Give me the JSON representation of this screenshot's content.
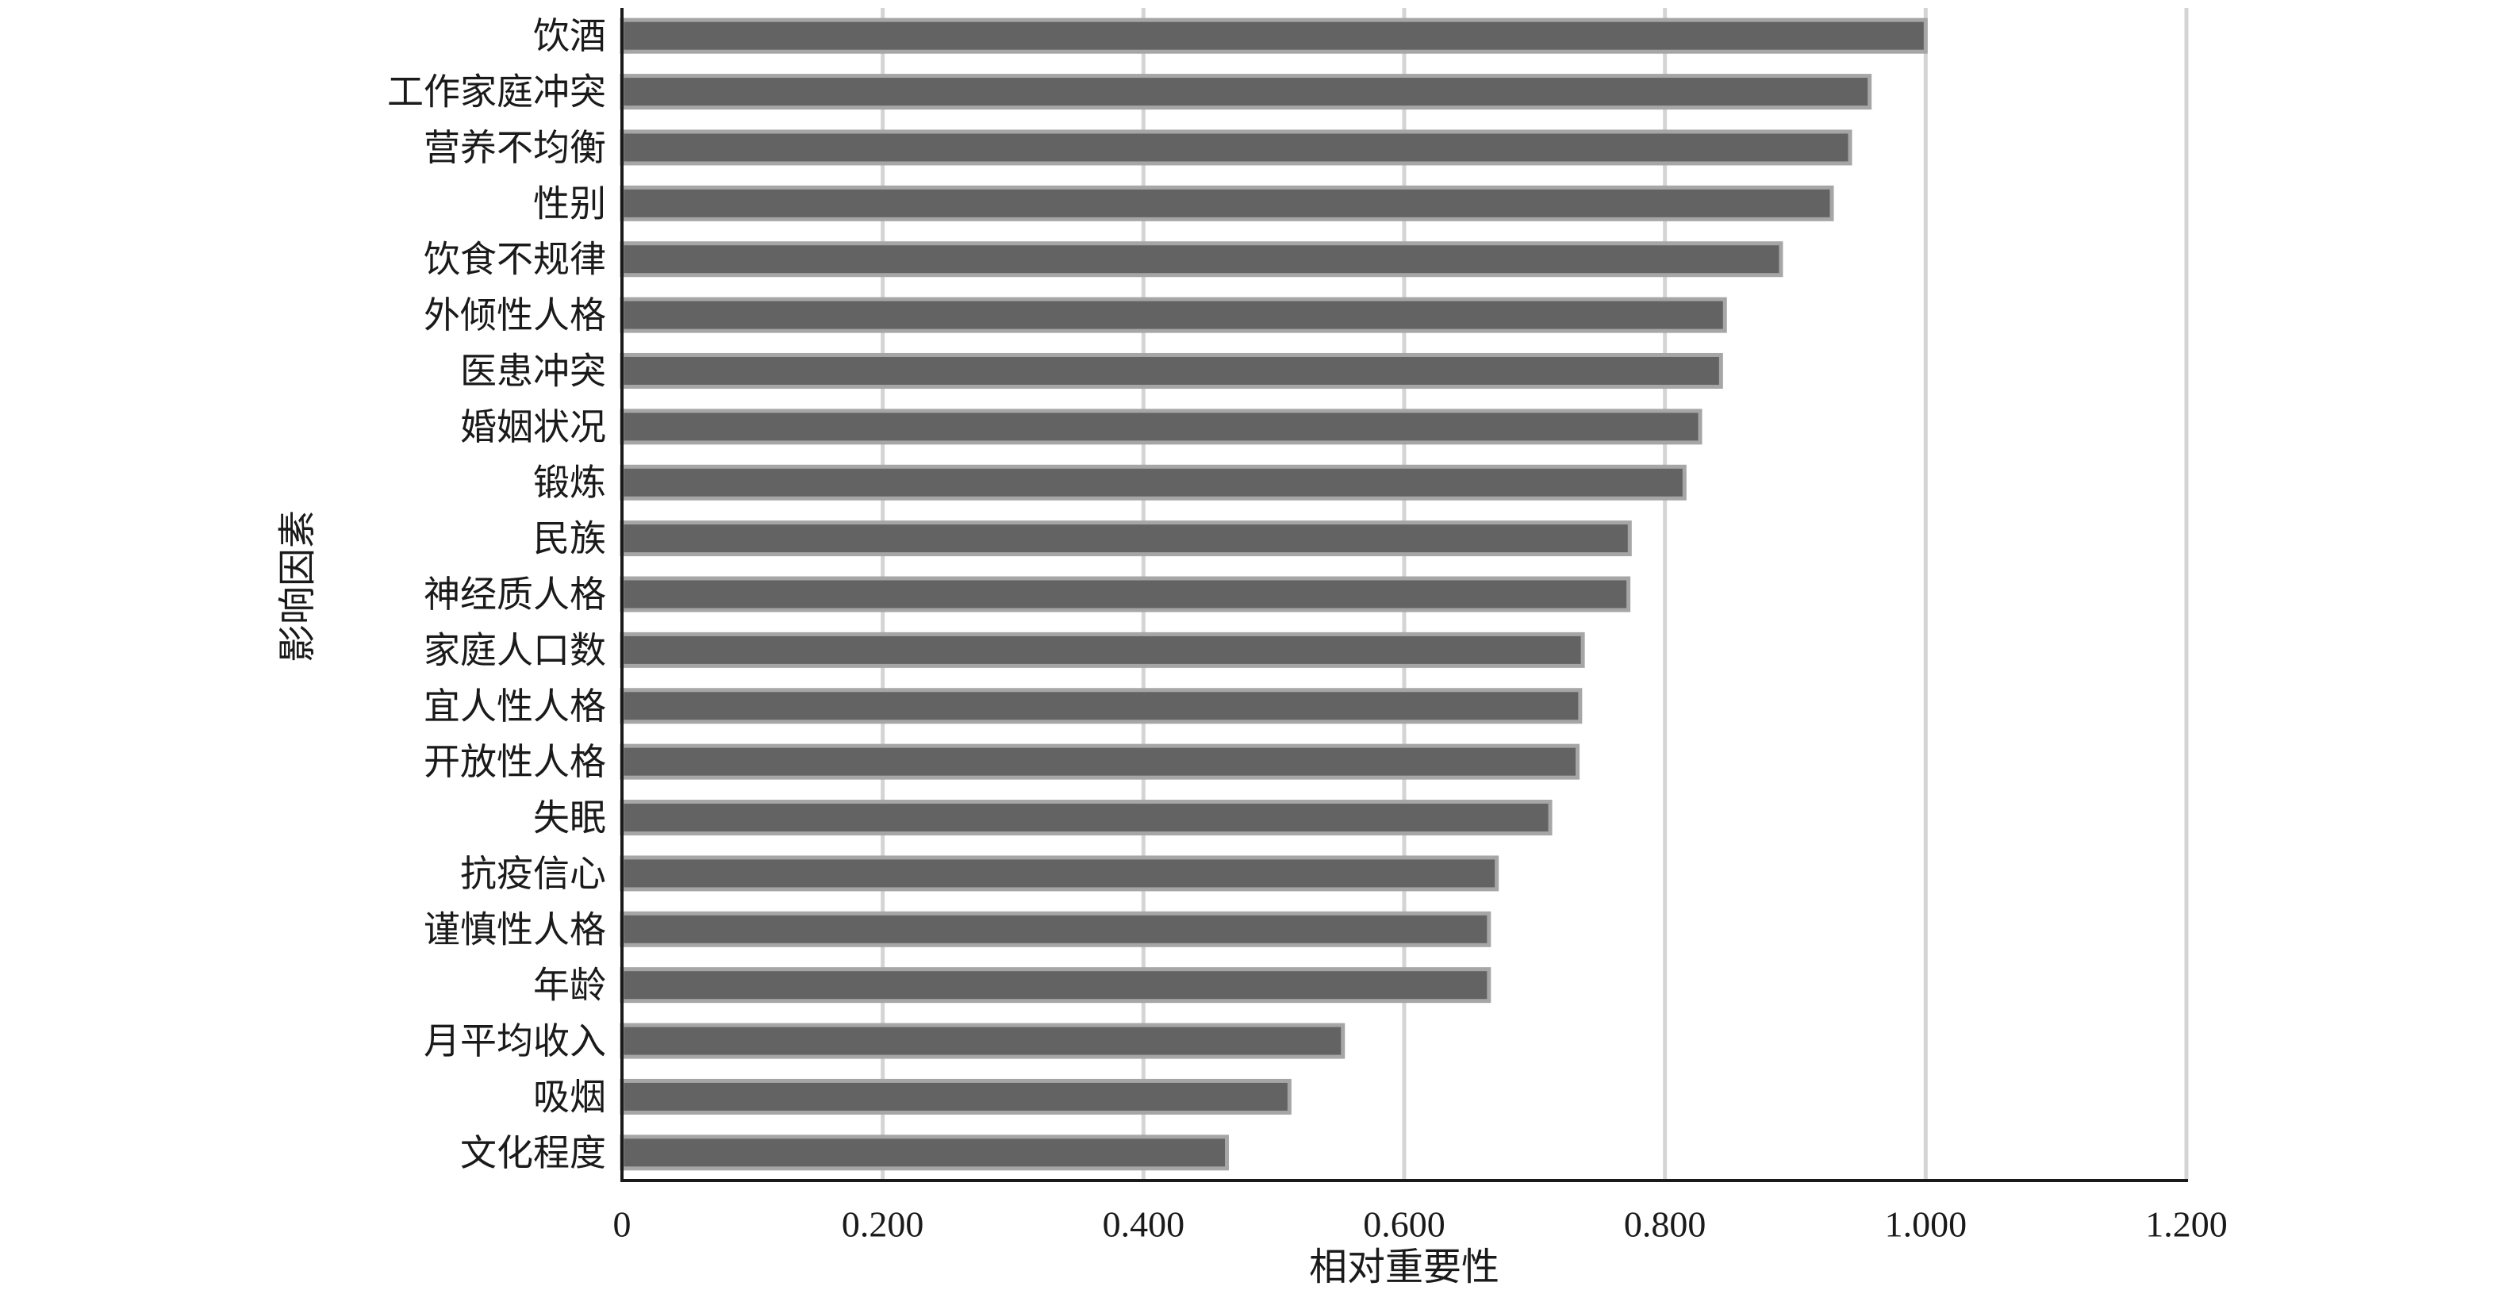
{
  "chart_data": {
    "type": "bar",
    "orientation": "horizontal",
    "xlabel": "相对重要性",
    "ylabel": "影响因素",
    "xlim": [
      0,
      1.2
    ],
    "xticks": [
      "0",
      "0.200",
      "0.400",
      "0.600",
      "0.800",
      "1.000",
      "1.200"
    ],
    "grid": "vertical",
    "legend": "none",
    "categories": [
      "饮酒",
      "工作家庭冲突",
      "营养不均衡",
      "性别",
      "饮食不规律",
      "外倾性人格",
      "医患冲突",
      "婚姻状况",
      "锻炼",
      "民族",
      "神经质人格",
      "家庭人口数",
      "宜人性人格",
      "开放性人格",
      "失眠",
      "抗疫信心",
      "谨慎性人格",
      "年龄",
      "月平均收入",
      "吸烟",
      "文化程度"
    ],
    "values": [
      1.0,
      0.957,
      0.942,
      0.928,
      0.889,
      0.846,
      0.843,
      0.827,
      0.815,
      0.773,
      0.772,
      0.737,
      0.735,
      0.733,
      0.712,
      0.671,
      0.665,
      0.665,
      0.553,
      0.512,
      0.464
    ],
    "colors": {
      "bar_fill": "#636363",
      "bar_stroke": "#a6a6a6",
      "grid": "#d4d4d4",
      "axis": "#1a1a1a",
      "text": "#1a1a1a"
    }
  }
}
